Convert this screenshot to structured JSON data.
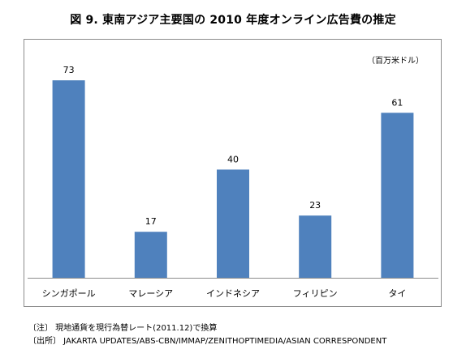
{
  "chart_data": {
    "type": "bar",
    "title": "図 9.  東南アジア主要国の 2010 年度オンライン広告費の推定",
    "unit_label": "（百万米ドル）",
    "categories": [
      "シンガポール",
      "マレーシア",
      "インドネシア",
      "フィリピン",
      "タイ"
    ],
    "values": [
      73,
      17,
      40,
      23,
      61
    ],
    "ylim": [
      0,
      80
    ],
    "grid": false,
    "legend": "none",
    "bar_color": "#4f81bd"
  },
  "notes": {
    "note": "〔注〕 現地通貨を現行為替レート(2011.12)で換算",
    "source": "〔出所〕 JAKARTA UPDATES/ABS-CBN/IMMAP/ZENITHOPTIMEDIA/ASIAN CORRESPONDENT"
  }
}
